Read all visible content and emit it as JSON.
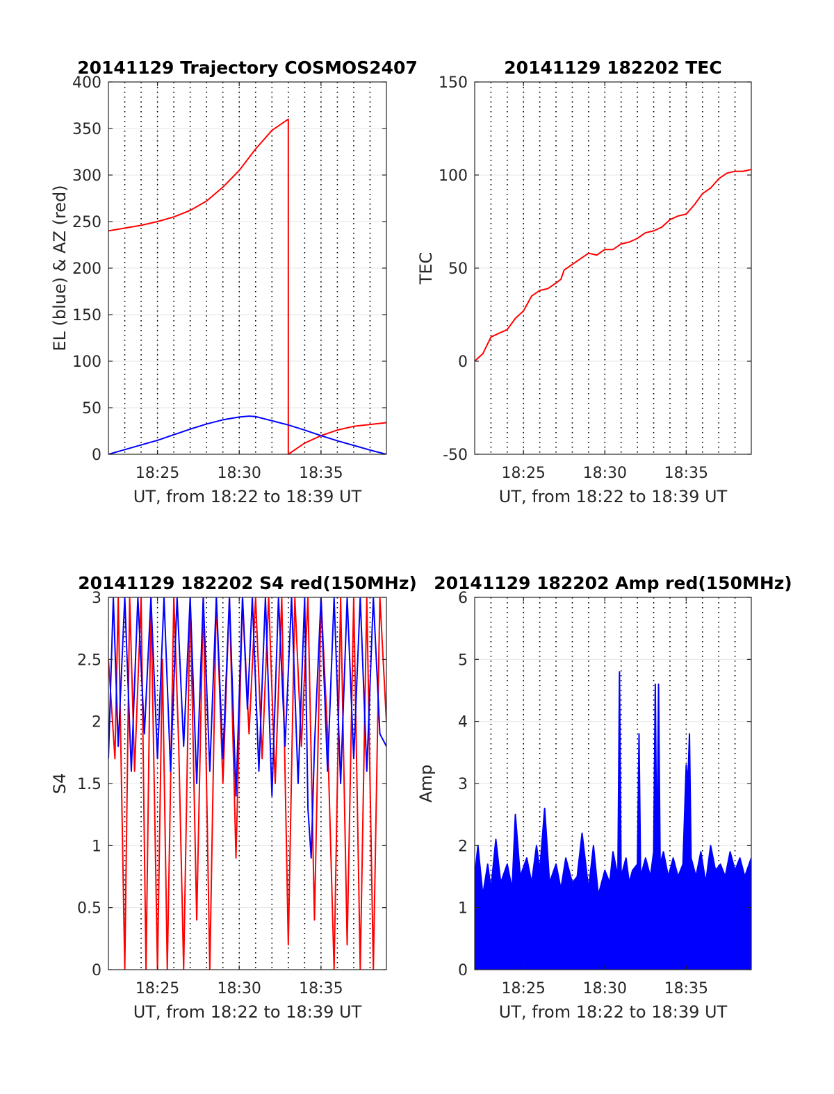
{
  "colors": {
    "el_blue": "#0000ff",
    "az_red": "#ff0000",
    "axis": "#262626",
    "grid": "#e6e6e6",
    "dotted": "#000000"
  },
  "chart_data": [
    {
      "id": "trajectory",
      "type": "line",
      "title": "20141129 Trajectory COSMOS2407",
      "xlabel": "UT, from 18:22 to 18:39 UT",
      "ylabel": "EL (blue) & AZ (red)",
      "xlim": [
        22,
        39
      ],
      "ylim": [
        0,
        400
      ],
      "x_unit": "minutes after 18:00 UT",
      "yticks": [
        0,
        50,
        100,
        150,
        200,
        250,
        300,
        350,
        400
      ],
      "ytick_labels": [
        "0",
        "50",
        "100",
        "150",
        "200",
        "250",
        "300",
        "350",
        "400"
      ],
      "xticks": [
        25,
        30,
        35
      ],
      "xtick_labels": [
        "18:25",
        "18:30",
        "18:35"
      ],
      "vlines": [
        23,
        24,
        25,
        26,
        27,
        28,
        29,
        30,
        31,
        32,
        33,
        34,
        35,
        36,
        37,
        38
      ],
      "grid": true,
      "series": [
        {
          "color": "#ff0000",
          "points": [
            [
              22,
              240
            ],
            [
              23,
              243
            ],
            [
              24,
              246
            ],
            [
              25,
              250
            ],
            [
              26,
              255
            ],
            [
              27,
              262
            ],
            [
              28,
              272
            ],
            [
              29,
              287
            ],
            [
              30,
              305
            ],
            [
              31,
              328
            ],
            [
              32,
              348
            ],
            [
              33,
              360
            ],
            [
              33,
              0
            ],
            [
              34,
              12
            ],
            [
              35,
              20
            ],
            [
              36,
              26
            ],
            [
              37,
              30
            ],
            [
              38,
              32
            ],
            [
              39,
              34
            ]
          ]
        },
        {
          "color": "#0000ff",
          "points": [
            [
              22,
              0
            ],
            [
              23,
              5
            ],
            [
              24,
              10
            ],
            [
              25,
              15
            ],
            [
              26,
              21
            ],
            [
              27,
              27
            ],
            [
              28,
              32.5
            ],
            [
              29,
              37
            ],
            [
              30,
              40
            ],
            [
              30.6,
              41
            ],
            [
              31,
              40.5
            ],
            [
              32,
              36
            ],
            [
              33,
              31.5
            ],
            [
              34,
              26
            ],
            [
              35,
              20
            ],
            [
              36,
              14.5
            ],
            [
              37,
              9.5
            ],
            [
              38,
              4.5
            ],
            [
              39,
              0
            ]
          ]
        }
      ]
    },
    {
      "id": "tec",
      "type": "line",
      "title": "20141129 182202 TEC",
      "xlabel": "UT, from 18:22 to 18:39 UT",
      "ylabel": "TEC",
      "xlim": [
        22,
        39
      ],
      "ylim": [
        -50,
        150
      ],
      "x_unit": "minutes after 18:00 UT",
      "yticks": [
        -50,
        0,
        50,
        100,
        150
      ],
      "ytick_labels": [
        "-50",
        "0",
        "50",
        "100",
        "150"
      ],
      "xticks": [
        25,
        30,
        35
      ],
      "xtick_labels": [
        "18:25",
        "18:30",
        "18:35"
      ],
      "vlines": [
        23,
        24,
        25,
        26,
        27,
        28,
        29,
        30,
        31,
        32,
        33,
        34,
        35,
        36,
        37,
        38
      ],
      "grid": true,
      "series": [
        {
          "color": "#ff0000",
          "points": [
            [
              22,
              0
            ],
            [
              22.5,
              4
            ],
            [
              23,
              13
            ],
            [
              23.5,
              15
            ],
            [
              24,
              17
            ],
            [
              24.5,
              23
            ],
            [
              25,
              27
            ],
            [
              25.5,
              35
            ],
            [
              26,
              38
            ],
            [
              26.5,
              39
            ],
            [
              27,
              42
            ],
            [
              27.3,
              44
            ],
            [
              27.5,
              49
            ],
            [
              28,
              52
            ],
            [
              28.5,
              55
            ],
            [
              29,
              58
            ],
            [
              29.5,
              57
            ],
            [
              30,
              60
            ],
            [
              30.5,
              60
            ],
            [
              31,
              63
            ],
            [
              31.5,
              64
            ],
            [
              32,
              66
            ],
            [
              32.5,
              69
            ],
            [
              33,
              70
            ],
            [
              33.5,
              72
            ],
            [
              34,
              76
            ],
            [
              34.5,
              78
            ],
            [
              35,
              79
            ],
            [
              35.5,
              84
            ],
            [
              36,
              90
            ],
            [
              36.5,
              93
            ],
            [
              37,
              98
            ],
            [
              37.5,
              101
            ],
            [
              38,
              102
            ],
            [
              38.5,
              102
            ],
            [
              39,
              103
            ]
          ]
        }
      ]
    },
    {
      "id": "s4",
      "type": "line",
      "title": "20141129 182202 S4 red(150MHz)",
      "xlabel": "UT, from 18:22 to 18:39 UT",
      "ylabel": "S4",
      "xlim": [
        22,
        39
      ],
      "ylim": [
        0,
        3
      ],
      "x_unit": "minutes after 18:00 UT",
      "yticks": [
        0,
        0.5,
        1,
        1.5,
        2,
        2.5,
        3
      ],
      "ytick_labels": [
        "0",
        "0.5",
        "1",
        "1.5",
        "2",
        "2.5",
        "3"
      ],
      "xticks": [
        25,
        30,
        35
      ],
      "xtick_labels": [
        "18:25",
        "18:30",
        "18:35"
      ],
      "vlines": [
        23,
        24,
        25,
        26,
        27,
        28,
        29,
        30,
        31,
        32,
        33,
        34,
        35,
        36,
        37,
        38
      ],
      "grid": true,
      "series": [
        {
          "color": "#ff0000",
          "points": [
            [
              22,
              2.5
            ],
            [
              22.4,
              1.7
            ],
            [
              22.6,
              3
            ],
            [
              23,
              0
            ],
            [
              23.3,
              3
            ],
            [
              23.6,
              1.6
            ],
            [
              24,
              3
            ],
            [
              24.3,
              0
            ],
            [
              24.6,
              3
            ],
            [
              25,
              0
            ],
            [
              25.3,
              2.5
            ],
            [
              25.6,
              0
            ],
            [
              26,
              3
            ],
            [
              26.3,
              1.8
            ],
            [
              26.6,
              0
            ],
            [
              27,
              3
            ],
            [
              27.4,
              0.4
            ],
            [
              27.8,
              3
            ],
            [
              28.2,
              0
            ],
            [
              28.6,
              3
            ],
            [
              29,
              1.5
            ],
            [
              29.4,
              3
            ],
            [
              29.8,
              0.9
            ],
            [
              30.2,
              3
            ],
            [
              30.6,
              1.9
            ],
            [
              31,
              3
            ],
            [
              31.4,
              1.7
            ],
            [
              31.8,
              3
            ],
            [
              32.2,
              1.5
            ],
            [
              32.6,
              3
            ],
            [
              33,
              0.2
            ],
            [
              33.4,
              3
            ],
            [
              33.8,
              1.8
            ],
            [
              34.2,
              3
            ],
            [
              34.6,
              0.4
            ],
            [
              35,
              3
            ],
            [
              35.4,
              1.9
            ],
            [
              35.8,
              0
            ],
            [
              36.2,
              3
            ],
            [
              36.6,
              0.2
            ],
            [
              37,
              3
            ],
            [
              37.4,
              0
            ],
            [
              37.8,
              3
            ],
            [
              38.2,
              0
            ],
            [
              38.6,
              3
            ],
            [
              39,
              2
            ]
          ]
        },
        {
          "color": "#0000ff",
          "points": [
            [
              22,
              1.7
            ],
            [
              22.3,
              3
            ],
            [
              22.6,
              1.8
            ],
            [
              23,
              3
            ],
            [
              23.4,
              1.6
            ],
            [
              23.8,
              3
            ],
            [
              24.2,
              1.9
            ],
            [
              24.6,
              3
            ],
            [
              25,
              1.7
            ],
            [
              25.4,
              3
            ],
            [
              25.8,
              1.6
            ],
            [
              26.2,
              3
            ],
            [
              26.6,
              1.8
            ],
            [
              27,
              3
            ],
            [
              27.4,
              1.5
            ],
            [
              27.8,
              3
            ],
            [
              28.2,
              1.6
            ],
            [
              28.6,
              3
            ],
            [
              29,
              1.7
            ],
            [
              29.4,
              3
            ],
            [
              29.8,
              1.4
            ],
            [
              30.2,
              3
            ],
            [
              30.5,
              2.1
            ],
            [
              30.8,
              3
            ],
            [
              31.2,
              1.6
            ],
            [
              31.6,
              3
            ],
            [
              32,
              1.4
            ],
            [
              32.4,
              3
            ],
            [
              32.8,
              1.8
            ],
            [
              33.2,
              3
            ],
            [
              33.6,
              1.5
            ],
            [
              34,
              3
            ],
            [
              34.2,
              1.3
            ],
            [
              34.4,
              0.9
            ],
            [
              34.6,
              1.8
            ],
            [
              35,
              3
            ],
            [
              35.4,
              1.6
            ],
            [
              35.8,
              3
            ],
            [
              36.2,
              1.5
            ],
            [
              36.6,
              3
            ],
            [
              37,
              1.7
            ],
            [
              37.4,
              3
            ],
            [
              37.8,
              1.6
            ],
            [
              38.2,
              3
            ],
            [
              38.6,
              1.9
            ],
            [
              39,
              1.8
            ]
          ]
        }
      ]
    },
    {
      "id": "amp",
      "type": "line",
      "title": "20141129 182202 Amp red(150MHz)",
      "xlabel": "UT, from 18:22 to 18:39 UT",
      "ylabel": "Amp",
      "xlim": [
        22,
        39
      ],
      "ylim": [
        0,
        6
      ],
      "x_unit": "minutes after 18:00 UT",
      "yticks": [
        0,
        1,
        2,
        3,
        4,
        5,
        6
      ],
      "ytick_labels": [
        "0",
        "1",
        "2",
        "3",
        "4",
        "5",
        "6"
      ],
      "xticks": [
        25,
        30,
        35
      ],
      "xtick_labels": [
        "18:25",
        "18:30",
        "18:35"
      ],
      "vlines": [
        23,
        24,
        25,
        26,
        27,
        28,
        29,
        30,
        31,
        32,
        33,
        34,
        35,
        36,
        37,
        38
      ],
      "grid": true,
      "series": [
        {
          "color": "#0000ff",
          "fill_to_zero": true,
          "points": [
            [
              22,
              1.5
            ],
            [
              22.2,
              2.0
            ],
            [
              22.5,
              1.2
            ],
            [
              22.8,
              1.7
            ],
            [
              23.0,
              1.3
            ],
            [
              23.3,
              2.1
            ],
            [
              23.6,
              1.4
            ],
            [
              24.0,
              1.7
            ],
            [
              24.3,
              1.3
            ],
            [
              24.5,
              2.5
            ],
            [
              24.8,
              1.5
            ],
            [
              25.2,
              1.8
            ],
            [
              25.5,
              1.4
            ],
            [
              25.8,
              2.0
            ],
            [
              26.0,
              1.6
            ],
            [
              26.3,
              2.6
            ],
            [
              26.6,
              1.4
            ],
            [
              27.0,
              1.7
            ],
            [
              27.3,
              1.3
            ],
            [
              27.6,
              1.8
            ],
            [
              28.0,
              1.4
            ],
            [
              28.3,
              1.5
            ],
            [
              28.6,
              2.2
            ],
            [
              29.0,
              1.3
            ],
            [
              29.3,
              2.0
            ],
            [
              29.6,
              1.2
            ],
            [
              30.0,
              1.6
            ],
            [
              30.3,
              1.4
            ],
            [
              30.5,
              1.9
            ],
            [
              30.8,
              1.5
            ],
            [
              30.9,
              4.8
            ],
            [
              31.0,
              1.5
            ],
            [
              31.3,
              1.8
            ],
            [
              31.5,
              1.4
            ],
            [
              31.7,
              1.6
            ],
            [
              32.0,
              1.7
            ],
            [
              32.1,
              3.8
            ],
            [
              32.2,
              1.5
            ],
            [
              32.5,
              1.8
            ],
            [
              32.8,
              1.5
            ],
            [
              33.0,
              1.9
            ],
            [
              33.1,
              4.6
            ],
            [
              33.2,
              1.6
            ],
            [
              33.3,
              4.6
            ],
            [
              33.4,
              1.7
            ],
            [
              33.6,
              1.9
            ],
            [
              33.9,
              1.5
            ],
            [
              34.2,
              1.8
            ],
            [
              34.5,
              1.5
            ],
            [
              34.8,
              1.7
            ],
            [
              35.0,
              3.3
            ],
            [
              35.1,
              3.0
            ],
            [
              35.2,
              3.8
            ],
            [
              35.3,
              1.8
            ],
            [
              35.6,
              1.5
            ],
            [
              35.9,
              1.9
            ],
            [
              36.2,
              1.4
            ],
            [
              36.5,
              2.0
            ],
            [
              36.8,
              1.6
            ],
            [
              37.1,
              1.7
            ],
            [
              37.4,
              1.5
            ],
            [
              37.7,
              1.9
            ],
            [
              38.0,
              1.6
            ],
            [
              38.3,
              1.8
            ],
            [
              38.6,
              1.5
            ],
            [
              39,
              1.8
            ]
          ]
        }
      ]
    }
  ]
}
